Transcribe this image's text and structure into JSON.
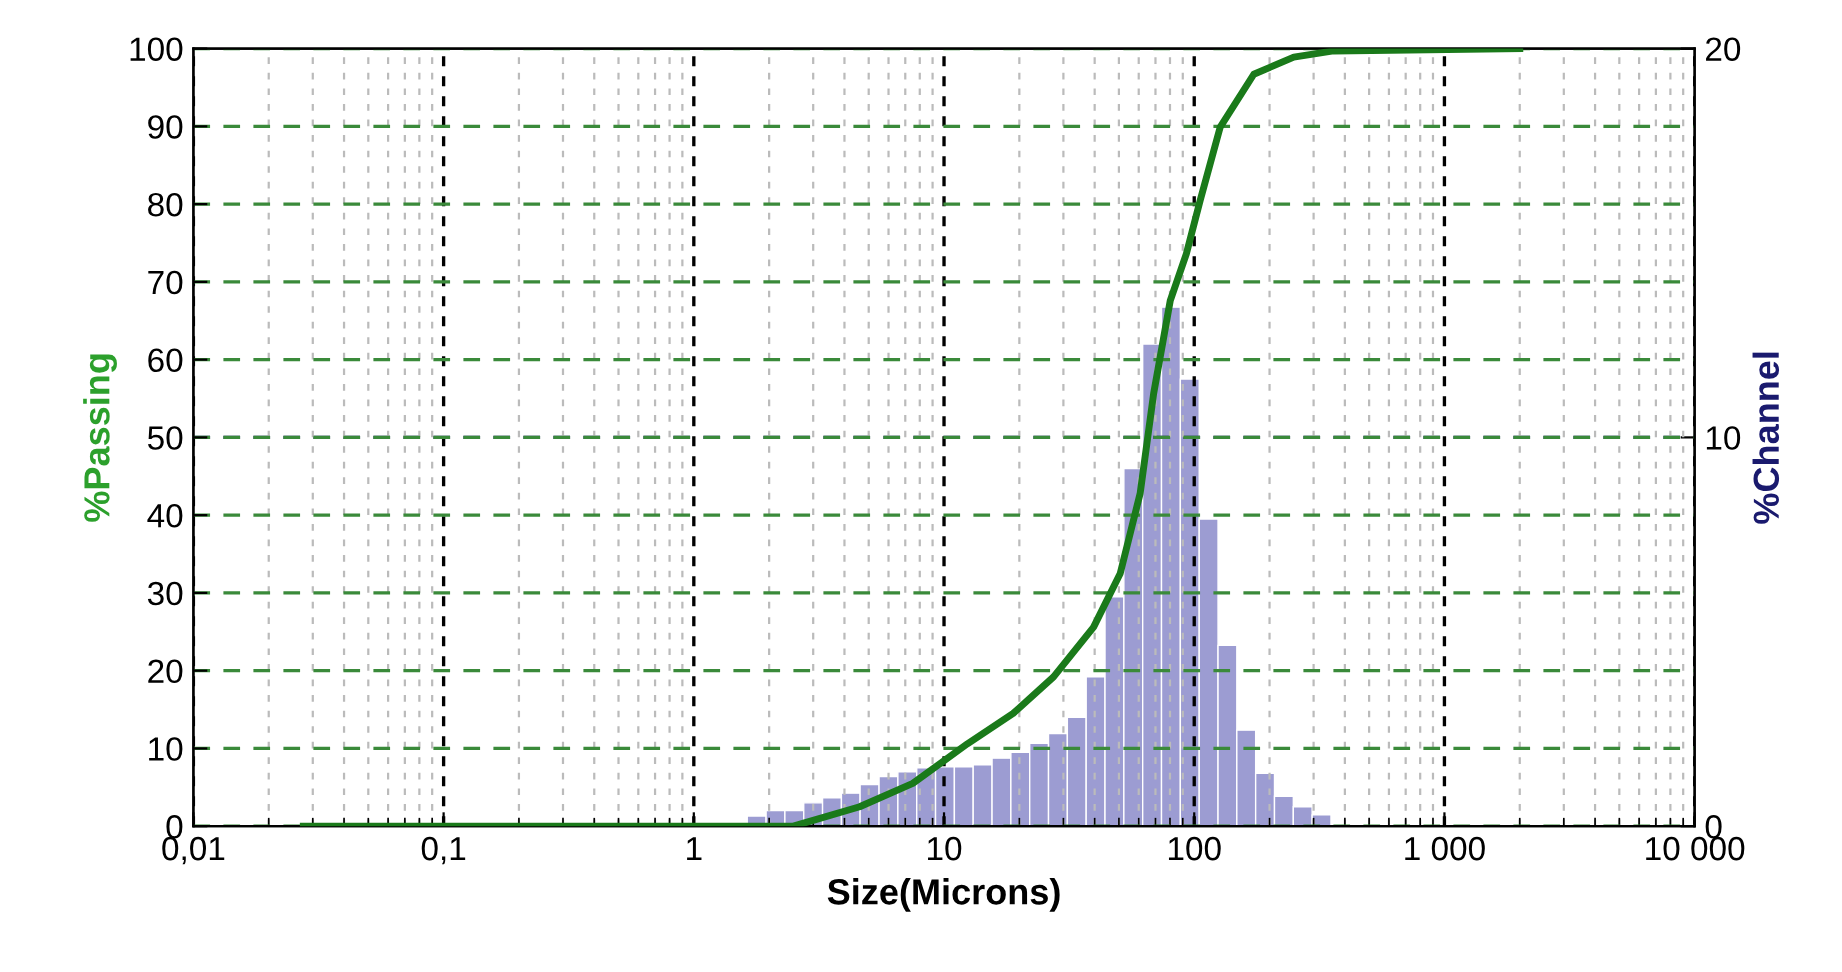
{
  "chart_data": {
    "type": "line",
    "xlabel": "Size(Microns)",
    "ylabel": "%Passing",
    "y2label": "%Channel",
    "log": "x",
    "xlim": [
      0.01,
      10000
    ],
    "xticks": [
      {
        "value": 0.01,
        "label": "0,01"
      },
      {
        "value": 0.1,
        "label": "0,1"
      },
      1,
      10,
      100,
      {
        "value": 1000,
        "label": "1 000"
      },
      {
        "value": 10000,
        "label": "10 000"
      }
    ],
    "ylim": [
      0,
      100
    ],
    "yticks": [
      0,
      10,
      20,
      30,
      40,
      50,
      60,
      70,
      80,
      90,
      100
    ],
    "y2lim": [
      0,
      20
    ],
    "y2ticks": [
      0,
      10,
      20
    ],
    "grid": true,
    "ref_lines": [
      {
        "axis": "y2",
        "value": 10,
        "color": "#1a1a6e",
        "line_style": "dashed"
      }
    ],
    "series": [
      {
        "type": "histogram",
        "axis": "y2",
        "color": "#9c9cd2",
        "bins": [
          1.635,
          1.945,
          2.312,
          2.75,
          3.27,
          3.89,
          4.62,
          5.5,
          6.54,
          7.78,
          9.25,
          11,
          13.08,
          15.56,
          18.5,
          22,
          26.16,
          31.11,
          37,
          44,
          52.33,
          62.23,
          74,
          88,
          104.7,
          124.5,
          148,
          176,
          209.3,
          248.9,
          296,
          352
        ],
        "values": [
          0.26,
          0.4,
          0.4,
          0.6,
          0.73,
          0.85,
          1.07,
          1.28,
          1.4,
          1.5,
          1.53,
          1.53,
          1.58,
          1.75,
          1.9,
          2.13,
          2.38,
          2.8,
          3.84,
          5.9,
          9.2,
          12.4,
          13.35,
          11.5,
          7.9,
          4.65,
          2.47,
          1.36,
          0.77,
          0.5,
          0.29
        ]
      },
      {
        "color": "#1a7a1a",
        "x": [
          0.0275,
          1,
          2.5,
          4.6,
          7.5,
          12.4,
          18.9,
          27.4,
          39.6,
          50.6,
          60.8,
          68.8,
          80.2,
          93,
          105.7,
          127,
          173,
          250,
          360,
          2000
        ],
        "values": [
          0,
          0,
          0,
          2.5,
          5.5,
          10.6,
          14.5,
          19.2,
          25.6,
          32.5,
          42.8,
          55.6,
          67.6,
          73.6,
          80.5,
          89.9,
          96.7,
          98.9,
          99.7,
          100
        ]
      }
    ]
  }
}
